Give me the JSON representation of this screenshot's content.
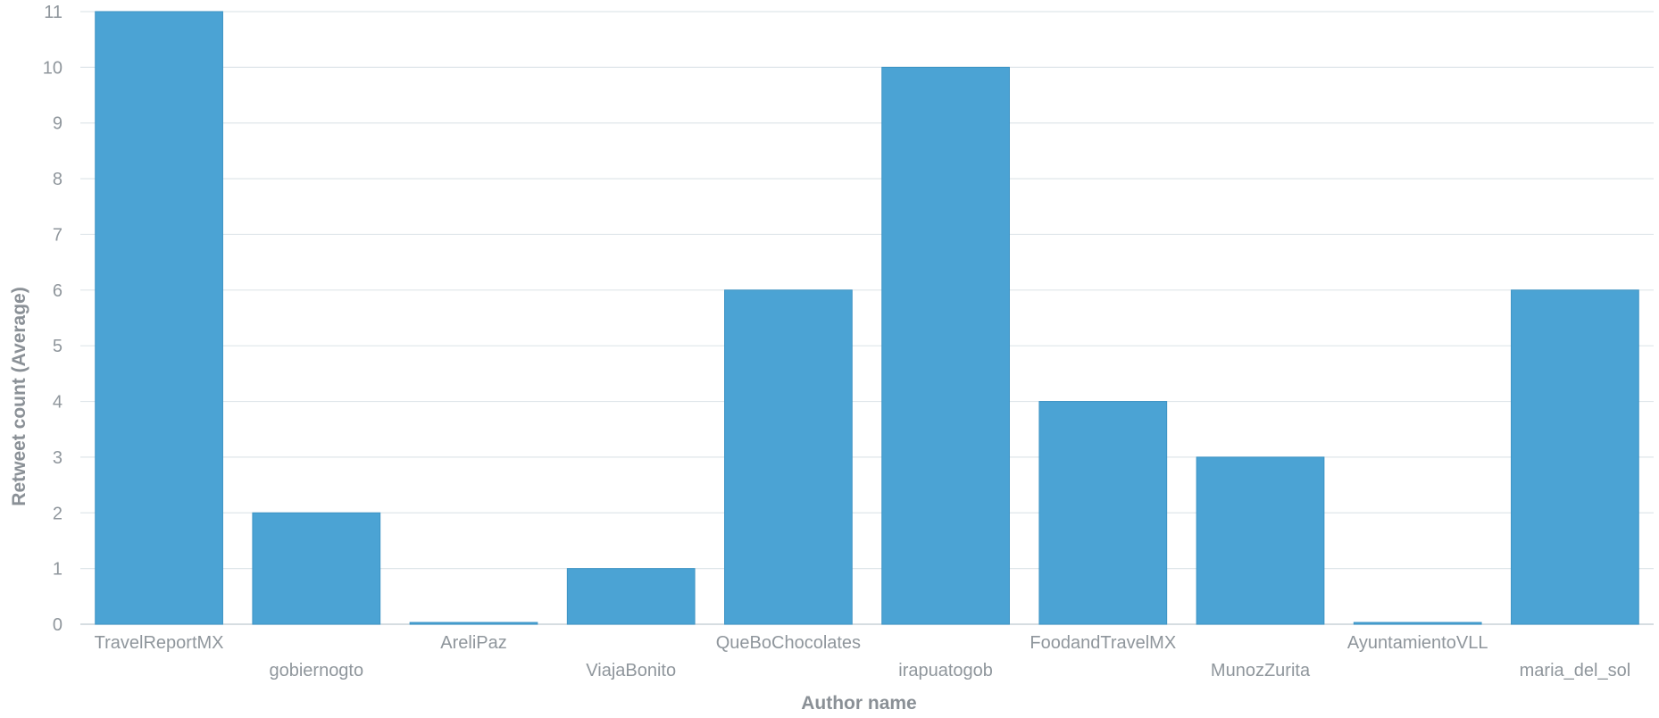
{
  "chart_data": {
    "type": "bar",
    "xlabel": "Author name",
    "ylabel": "Retweet count (Average)",
    "categories": [
      "TravelReportMX",
      "gobiernogto",
      "AreliPaz",
      "ViajaBonito",
      "QueBoChocolates",
      "irapuatogob",
      "FoodandTravelMX",
      "MunozZurita",
      "AyuntamientoVLL",
      "maria_del_sol"
    ],
    "values": [
      11,
      2,
      0,
      1,
      6,
      10,
      4,
      3,
      0,
      6
    ],
    "ylim": [
      0,
      11
    ],
    "yticks": [
      0,
      1,
      2,
      3,
      4,
      5,
      6,
      7,
      8,
      9,
      10,
      11
    ],
    "grid": true,
    "colors": {
      "bar": "#4ba3d4",
      "bar_stroke": "#3b93c4",
      "grid": "#dfe6ea",
      "text": "#8f969c"
    }
  }
}
